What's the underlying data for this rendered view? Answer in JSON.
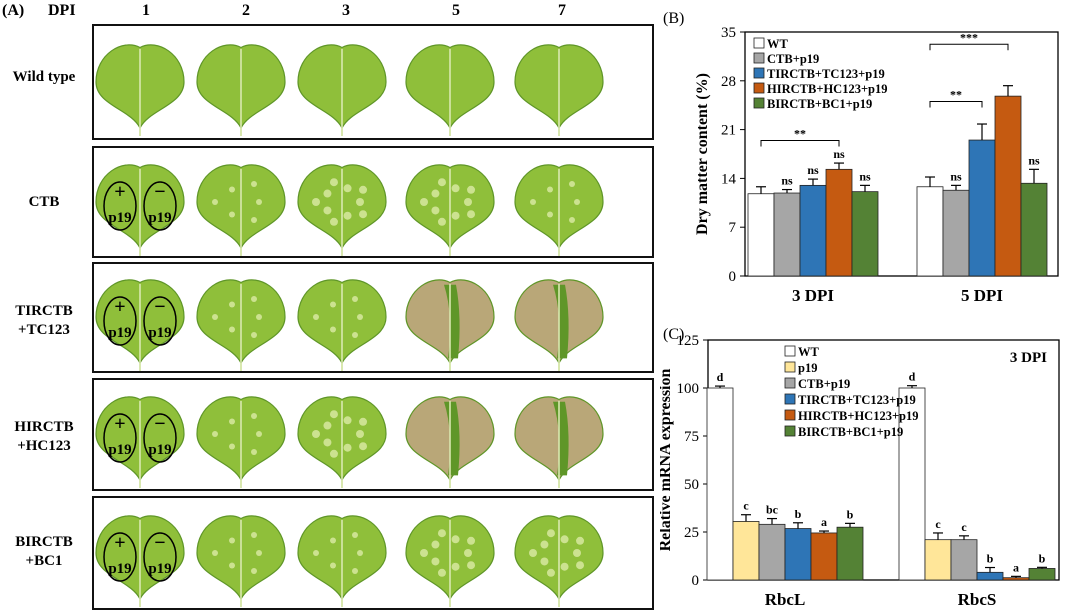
{
  "panel_a": {
    "label": "(A)",
    "dpi_header": "DPI",
    "columns": [
      "1",
      "2",
      "3",
      "5",
      "7"
    ],
    "rows": [
      {
        "label": "Wild type",
        "symptom": [
          0,
          0,
          0,
          0,
          0
        ]
      },
      {
        "label": "CTB",
        "symptom": [
          0,
          1,
          2,
          2,
          1
        ]
      },
      {
        "label": "TIRCTB\n+TC123",
        "symptom": [
          0,
          1,
          1,
          3,
          3
        ]
      },
      {
        "label": "HIRCTB\n+HC123",
        "symptom": [
          0,
          1,
          2,
          3,
          3
        ]
      },
      {
        "label": "BIRCTB\n+BC1",
        "symptom": [
          0,
          1,
          1,
          2,
          2
        ]
      }
    ],
    "infiltration": {
      "plus": "+",
      "minus": "−",
      "p19": "p19"
    },
    "colors": {
      "leaf_light": "#8fbf3a",
      "leaf_dark": "#5f9628",
      "necrosis": "#b9a778",
      "vein": "#d9e8b0"
    }
  },
  "chart_data": [
    {
      "panel": "(B)",
      "type": "bar",
      "ylabel": "Dry matter content (%)",
      "ylim": [
        0,
        35
      ],
      "yticks": [
        0,
        7,
        14,
        21,
        28,
        35
      ],
      "categories": [
        "3 DPI",
        "5 DPI"
      ],
      "series": [
        {
          "name": "WT",
          "color": "#ffffff",
          "values": [
            11.8,
            12.8
          ],
          "errors": [
            1.0,
            1.4
          ],
          "labels": [
            "",
            ""
          ]
        },
        {
          "name": "CTB+p19",
          "color": "#a6a6a6",
          "values": [
            11.9,
            12.3
          ],
          "errors": [
            0.5,
            0.7
          ],
          "labels": [
            "ns",
            "ns"
          ]
        },
        {
          "name": "TIRCTB+TC123+p19",
          "color": "#2e75b6",
          "values": [
            13.0,
            19.5
          ],
          "errors": [
            0.9,
            2.3
          ],
          "labels": [
            "ns",
            ""
          ]
        },
        {
          "name": "HIRCTB+HC123+p19",
          "color": "#c55a11",
          "values": [
            15.3,
            25.8
          ],
          "errors": [
            0.9,
            1.5
          ],
          "labels": [
            "ns",
            ""
          ]
        },
        {
          "name": "BIRCTB+BC1+p19",
          "color": "#548235",
          "values": [
            12.1,
            13.3
          ],
          "errors": [
            0.9,
            2.0
          ],
          "labels": [
            "ns",
            "ns"
          ]
        }
      ],
      "significance": [
        {
          "group": 0,
          "from": 0,
          "to": 3,
          "label": "**"
        },
        {
          "group": 1,
          "from": 0,
          "to": 2,
          "label": "**"
        },
        {
          "group": 1,
          "from": 0,
          "to": 3,
          "label": "***"
        }
      ],
      "legend": "top-left"
    },
    {
      "panel": "(C)",
      "type": "bar",
      "ylabel": "Relative mRNA expression",
      "annotation": "3 DPI",
      "ylim": [
        0,
        125
      ],
      "yticks": [
        0,
        25,
        50,
        75,
        100,
        125
      ],
      "categories": [
        "RbcL",
        "RbcS"
      ],
      "series": [
        {
          "name": "WT",
          "color": "#ffffff",
          "values": [
            100,
            100
          ],
          "errors": [
            1.0,
            1.2
          ],
          "labels": [
            "d",
            "d"
          ]
        },
        {
          "name": "p19",
          "color": "#ffe699",
          "values": [
            30.5,
            21.0
          ],
          "errors": [
            3.5,
            3.5
          ],
          "labels": [
            "c",
            "c"
          ]
        },
        {
          "name": "CTB+p19",
          "color": "#a6a6a6",
          "values": [
            29.0,
            21.0
          ],
          "errors": [
            3.0,
            2.0
          ],
          "labels": [
            "bc",
            "c"
          ]
        },
        {
          "name": "TIRCTB+TC123+p19",
          "color": "#2e75b6",
          "values": [
            26.8,
            4.0
          ],
          "errors": [
            3.0,
            2.5
          ],
          "labels": [
            "b",
            "b"
          ]
        },
        {
          "name": "HIRCTB+HC123+p19",
          "color": "#c55a11",
          "values": [
            24.5,
            1.2
          ],
          "errors": [
            1.0,
            0.7
          ],
          "labels": [
            "a",
            "a"
          ]
        },
        {
          "name": "BIRCTB+BC1+p19",
          "color": "#548235",
          "values": [
            27.5,
            6.0
          ],
          "errors": [
            2.0,
            0.6
          ],
          "labels": [
            "b",
            "b"
          ]
        }
      ],
      "legend": "top-left"
    }
  ]
}
